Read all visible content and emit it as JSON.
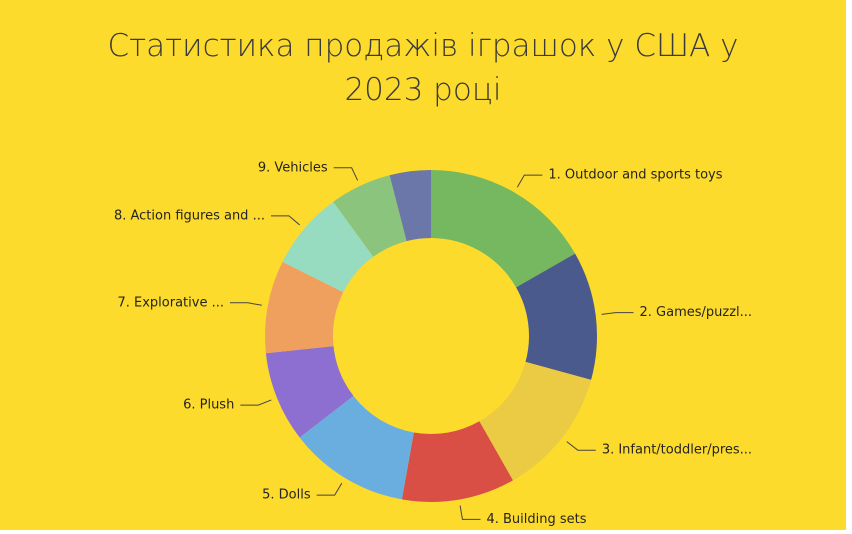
{
  "chart_data": {
    "type": "donut",
    "title": "Статистика продажів іграшок у США у 2023 році",
    "categories": [
      "1. Outdoor and sports toys",
      "2. Games/puzzl...",
      "3. Infant/toddler/pres...",
      "4. Building sets",
      "5. Dolls",
      "6. Plush",
      "7. Explorative ...",
      "8. Action figures and ...",
      "9. Vehicles",
      null
    ],
    "values": [
      16.7,
      12.5,
      12.5,
      11,
      11.7,
      8.8,
      9,
      7.6,
      6,
      4
    ],
    "colors": [
      "#76b860",
      "#4a5a8c",
      "#eccb44",
      "#d94f45",
      "#6aaee0",
      "#8c6fd1",
      "#efa05f",
      "#97dcc0",
      "#8bc47c",
      "#6b77a8"
    ]
  }
}
